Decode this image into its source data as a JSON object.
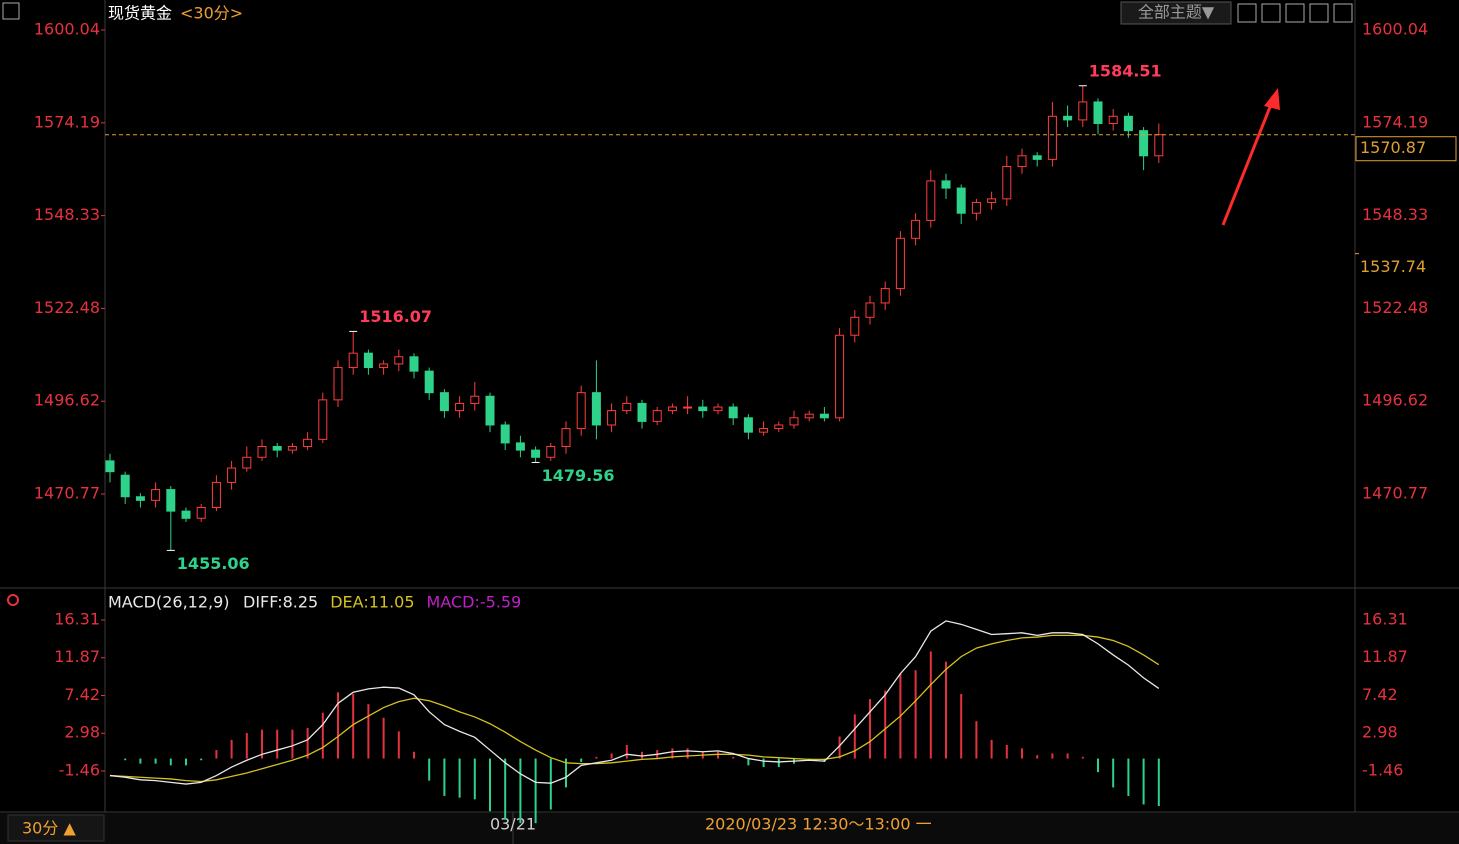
{
  "header": {
    "toolbar_button": "全部主题▼"
  },
  "footer": {
    "period_button": "30分 ▲",
    "date": "03/21",
    "range": "2020/03/23 12:30～13:00 一"
  },
  "chart_data": [
    {
      "type": "candlestick",
      "title": "现货黄金",
      "period": "<30分>",
      "up_color": "#ff3c3c",
      "down_color": "#2fd28a",
      "ylim": [
        1444.58,
        1602.83
      ],
      "yticks": [
        1470.77,
        1496.62,
        1522.48,
        1548.33,
        1574.19,
        1600.04
      ],
      "marker_price": 1537.74,
      "open": [
        1480,
        1476,
        1470,
        1469,
        1472,
        1466,
        1464,
        1467,
        1474,
        1478,
        1481,
        1484,
        1483,
        1484,
        1486,
        1497,
        1506,
        1510,
        1506,
        1507,
        1509,
        1505,
        1499,
        1494,
        1496,
        1498,
        1490,
        1485,
        1483,
        1481,
        1484,
        1489,
        1499,
        1490,
        1494,
        1496,
        1491,
        1494,
        1495,
        1495,
        1494,
        1495,
        1492,
        1488,
        1489,
        1490,
        1492,
        1493,
        1492,
        1515,
        1520,
        1524,
        1528,
        1542,
        1547,
        1558,
        1556,
        1549,
        1552,
        1553,
        1562,
        1565,
        1564,
        1576,
        1575,
        1580,
        1574,
        1576,
        1572,
        1565
      ],
      "high": [
        1482,
        1477,
        1471,
        1474,
        1473,
        1467,
        1468,
        1476,
        1480,
        1484,
        1486,
        1485,
        1485,
        1488,
        1499,
        1508,
        1516.07,
        1511,
        1508,
        1511,
        1510,
        1506,
        1500,
        1498,
        1502,
        1499,
        1491,
        1487,
        1484,
        1485,
        1491,
        1501,
        1508,
        1496,
        1498,
        1497,
        1495,
        1496,
        1498,
        1497,
        1496,
        1496,
        1493,
        1491,
        1491,
        1494,
        1494,
        1495,
        1517,
        1522,
        1526,
        1530,
        1544,
        1549,
        1561,
        1560,
        1557,
        1553,
        1555,
        1565,
        1567,
        1566,
        1580,
        1579,
        1584.51,
        1581,
        1578,
        1577,
        1573,
        1574
      ],
      "low": [
        1474,
        1468,
        1467,
        1467,
        1455.06,
        1463,
        1463,
        1466,
        1472,
        1477,
        1480,
        1481,
        1482,
        1483,
        1485,
        1495,
        1504,
        1504,
        1504,
        1505,
        1503,
        1497,
        1492,
        1492,
        1494,
        1488,
        1483,
        1481,
        1479.56,
        1480,
        1482,
        1487,
        1486,
        1488,
        1493,
        1489,
        1490,
        1493,
        1493,
        1492,
        1493,
        1490,
        1486,
        1487,
        1488,
        1489,
        1491,
        1491,
        1491,
        1513,
        1518,
        1522,
        1526,
        1540,
        1545,
        1553,
        1546,
        1547,
        1550,
        1551,
        1560,
        1562,
        1562,
        1573,
        1573,
        1571,
        1572,
        1570,
        1561,
        1563
      ],
      "close": [
        1477,
        1470,
        1469,
        1472,
        1466,
        1464,
        1467,
        1474,
        1478,
        1481,
        1484,
        1483,
        1484,
        1486,
        1497,
        1506,
        1510,
        1506,
        1507,
        1509,
        1505,
        1499,
        1494,
        1496,
        1498,
        1490,
        1485,
        1483,
        1481,
        1484,
        1489,
        1499,
        1490,
        1494,
        1496,
        1491,
        1494,
        1495,
        1495,
        1494,
        1495,
        1492,
        1488,
        1489,
        1490,
        1492,
        1493,
        1492,
        1515,
        1520,
        1524,
        1528,
        1542,
        1547,
        1558,
        1556,
        1549,
        1552,
        1553,
        1562,
        1565,
        1564,
        1576,
        1575,
        1580,
        1574,
        1576,
        1572,
        1565,
        1570.87
      ]
    },
    {
      "type": "macd",
      "title": "MACD(26,12,9)",
      "ylim": [
        -6.29,
        17.25
      ],
      "yticks": [
        -1.46,
        2.98,
        7.42,
        11.87,
        16.31
      ],
      "series": [
        {
          "name": "DIFF:8.25",
          "color": "#e8e8e8",
          "values": [
            -2.0,
            -2.2,
            -2.5,
            -2.6,
            -2.8,
            -3.0,
            -2.8,
            -2.0,
            -1.0,
            -0.2,
            0.5,
            1.0,
            1.5,
            2.2,
            4.0,
            6.5,
            7.8,
            8.2,
            8.4,
            8.3,
            7.5,
            5.5,
            4.0,
            3.2,
            2.5,
            1.0,
            -0.5,
            -1.8,
            -2.8,
            -2.9,
            -2.2,
            -0.8,
            -0.5,
            -0.2,
            0.5,
            0.3,
            0.5,
            0.8,
            0.9,
            0.8,
            0.9,
            0.6,
            0.0,
            -0.3,
            -0.4,
            -0.3,
            -0.2,
            -0.3,
            1.5,
            3.5,
            5.5,
            7.5,
            10.0,
            12.0,
            15.0,
            16.2,
            15.8,
            15.2,
            14.6,
            14.7,
            14.8,
            14.5,
            14.8,
            14.8,
            14.6,
            13.5,
            12.2,
            11.0,
            9.5,
            8.25
          ]
        },
        {
          "name": "DEA:11.05",
          "color": "#d4c21e",
          "values": [
            -2.0,
            -2.1,
            -2.2,
            -2.3,
            -2.4,
            -2.6,
            -2.7,
            -2.5,
            -2.1,
            -1.7,
            -1.2,
            -0.7,
            -0.2,
            0.4,
            1.3,
            2.6,
            4.0,
            5.0,
            6.0,
            6.7,
            7.1,
            6.8,
            6.2,
            5.5,
            4.9,
            4.1,
            3.1,
            2.0,
            1.0,
            0.1,
            -0.5,
            -0.6,
            -0.6,
            -0.5,
            -0.3,
            -0.1,
            0.0,
            0.2,
            0.3,
            0.4,
            0.5,
            0.5,
            0.4,
            0.2,
            0.1,
            0.0,
            -0.1,
            -0.1,
            0.2,
            0.9,
            2.0,
            3.5,
            5.0,
            6.8,
            8.7,
            10.5,
            12.0,
            13.0,
            13.5,
            13.9,
            14.2,
            14.3,
            14.5,
            14.5,
            14.5,
            14.3,
            13.9,
            13.2,
            12.2,
            11.05
          ]
        },
        {
          "name": "MACD:-5.59",
          "color": "#c020c8",
          "up_color": "#e6323e",
          "down_color": "#2fd28a",
          "values": [
            0,
            -0.2,
            -0.6,
            -0.6,
            -0.8,
            -0.8,
            -0.2,
            1.0,
            2.2,
            3.0,
            3.4,
            3.4,
            3.4,
            3.6,
            5.4,
            7.8,
            7.6,
            6.4,
            4.8,
            3.2,
            0.8,
            -2.6,
            -4.4,
            -4.6,
            -4.8,
            -6.2,
            -7.2,
            -7.6,
            -7.6,
            -6.0,
            -3.4,
            -0.4,
            0.2,
            0.6,
            1.6,
            0.8,
            1.0,
            1.2,
            1.2,
            0.8,
            0.8,
            0.2,
            -0.8,
            -1.0,
            -1.0,
            -0.6,
            -0.2,
            -0.4,
            2.6,
            5.2,
            7.0,
            8.0,
            10.0,
            10.4,
            12.6,
            11.4,
            7.6,
            4.4,
            2.2,
            1.6,
            1.2,
            0.4,
            0.6,
            0.6,
            0.2,
            -1.6,
            -3.4,
            -4.4,
            -5.4,
            -5.59
          ]
        }
      ]
    }
  ]
}
